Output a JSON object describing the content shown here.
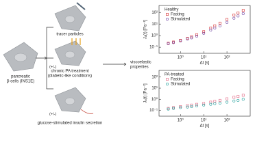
{
  "diagram": {
    "cell_label_1": "pancreatic",
    "cell_label_2": "β-cells (INS1E)",
    "step_1": "tracer particles",
    "step_2_sign": "(+/-)",
    "step_2_1": "chronic PA treatment",
    "step_2_2": "(diabetic-like conditions)",
    "step_3_sign": "(+/-)",
    "step_3": "glucose-stimulated insulin secretion",
    "result_1": "viscoelastic",
    "result_2": "properties"
  },
  "chart_data": [
    {
      "type": "scatter",
      "legend_title": "Healthy",
      "y_label": "Jₐ(t) [Pa⁻¹]",
      "x_label": "Δt [s]",
      "log_x": true,
      "log_y": true,
      "xlim": [
        0.12,
        1000
      ],
      "ylim": [
        0.03,
        400
      ],
      "xticks": [
        {
          "value": 1,
          "label": "10⁰"
        },
        {
          "value": 10,
          "label": "10¹"
        },
        {
          "value": 100,
          "label": "10²"
        }
      ],
      "yticks": [
        {
          "value": 0.1,
          "label": "10⁻¹"
        },
        {
          "value": 1,
          "label": "10⁰"
        },
        {
          "value": 10,
          "label": "10¹"
        },
        {
          "value": 100,
          "label": "10²"
        }
      ],
      "x": [
        0.3,
        0.5,
        1,
        2,
        3,
        5,
        10,
        20,
        30,
        50,
        100,
        200,
        300,
        500
      ],
      "series": [
        {
          "name": "Fasting",
          "color": "#d62728",
          "marker": "square",
          "values": [
            0.22,
            0.28,
            0.4,
            0.6,
            0.8,
            1.2,
            2.2,
            4.5,
            7,
            12,
            25,
            60,
            90,
            150
          ]
        },
        {
          "name": "Stimulated",
          "color": "#6a3fa0",
          "marker": "circle",
          "values": [
            0.2,
            0.25,
            0.35,
            0.5,
            0.65,
            0.9,
            1.6,
            3,
            4.5,
            7,
            14,
            32,
            50,
            80
          ]
        }
      ]
    },
    {
      "type": "scatter",
      "legend_title": "PA-treated",
      "y_label": "Jₐ(t) [Pa⁻¹]",
      "x_label": "Δt [s]",
      "log_x": true,
      "log_y": true,
      "xlim": [
        0.12,
        1000
      ],
      "ylim": [
        0.03,
        400
      ],
      "xticks": [
        {
          "value": 1,
          "label": "10⁰"
        },
        {
          "value": 10,
          "label": "10¹"
        },
        {
          "value": 100,
          "label": "10²"
        }
      ],
      "yticks": [
        {
          "value": 0.1,
          "label": "10⁻¹"
        },
        {
          "value": 1,
          "label": "10⁰"
        },
        {
          "value": 10,
          "label": "10¹"
        },
        {
          "value": 100,
          "label": "10²"
        }
      ],
      "x": [
        0.3,
        0.5,
        1,
        2,
        3,
        5,
        10,
        20,
        30,
        50,
        100,
        200,
        300,
        500
      ],
      "series": [
        {
          "name": "Fasting",
          "color": "#e0607e",
          "marker": "square",
          "values": [
            0.15,
            0.18,
            0.22,
            0.27,
            0.3,
            0.35,
            0.42,
            0.55,
            0.65,
            0.8,
            1.1,
            1.5,
            1.8,
            2.3
          ]
        },
        {
          "name": "Stimulated",
          "color": "#1f9e9a",
          "marker": "circle",
          "values": [
            0.13,
            0.15,
            0.18,
            0.2,
            0.22,
            0.25,
            0.3,
            0.35,
            0.4,
            0.45,
            0.55,
            0.7,
            0.8,
            1.0
          ]
        }
      ]
    }
  ]
}
